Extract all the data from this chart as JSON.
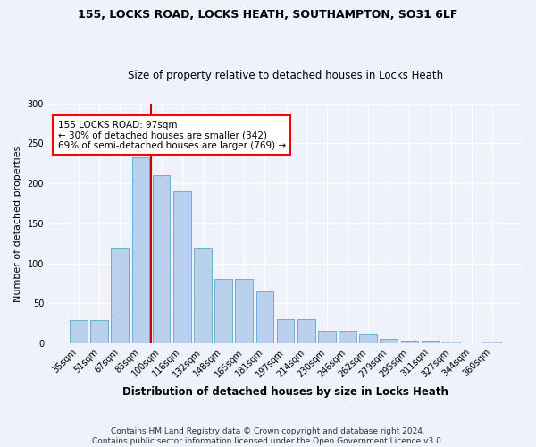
{
  "title1": "155, LOCKS ROAD, LOCKS HEATH, SOUTHAMPTON, SO31 6LF",
  "title2": "Size of property relative to detached houses in Locks Heath",
  "xlabel": "Distribution of detached houses by size in Locks Heath",
  "ylabel": "Number of detached properties",
  "categories": [
    "35sqm",
    "51sqm",
    "67sqm",
    "83sqm",
    "100sqm",
    "116sqm",
    "132sqm",
    "148sqm",
    "165sqm",
    "181sqm",
    "197sqm",
    "214sqm",
    "230sqm",
    "246sqm",
    "262sqm",
    "279sqm",
    "295sqm",
    "311sqm",
    "327sqm",
    "344sqm",
    "360sqm"
  ],
  "bar_values": [
    29,
    29,
    120,
    233,
    210,
    190,
    120,
    81,
    81,
    65,
    30,
    30,
    16,
    16,
    11,
    6,
    3,
    3,
    2,
    0,
    2
  ],
  "annotation_title": "155 LOCKS ROAD: 97sqm",
  "annotation_line1": "← 30% of detached houses are smaller (342)",
  "annotation_line2": "69% of semi-detached houses are larger (769) →",
  "bar_color": "#b8d0ea",
  "bar_edge_color": "#6aaed6",
  "line_color": "#cc0000",
  "background_color": "#eef2fa",
  "grid_color": "#ffffff",
  "ylim": [
    0,
    300
  ],
  "yticks": [
    0,
    50,
    100,
    150,
    200,
    250,
    300
  ],
  "footer": "Contains HM Land Registry data © Crown copyright and database right 2024.\nContains public sector information licensed under the Open Government Licence v3.0.",
  "title1_fontsize": 9,
  "title2_fontsize": 8.5,
  "ylabel_fontsize": 8,
  "xlabel_fontsize": 8.5,
  "tick_fontsize": 7,
  "annot_fontsize": 7.5,
  "footer_fontsize": 6.5
}
